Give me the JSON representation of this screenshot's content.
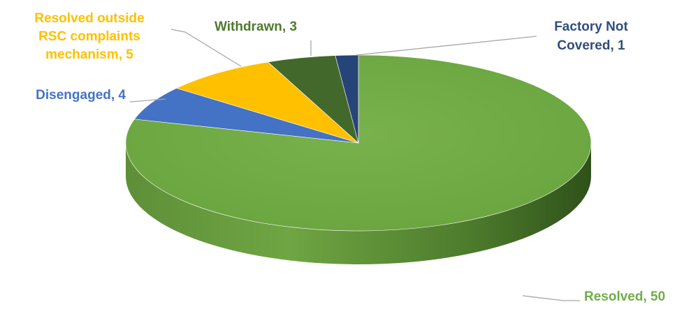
{
  "chart_data": {
    "type": "pie",
    "title": "",
    "slices": [
      {
        "label": "Resolved",
        "value": 50,
        "color": "#70AD47",
        "text": "Resolved, 50",
        "text_color": "#70AD47"
      },
      {
        "label": "Disengaged",
        "value": 4,
        "color": "#4472C4",
        "text": "Disengaged, 4",
        "text_color": "#4472C4"
      },
      {
        "label": "Resolved outside RSC complaints mechanism",
        "value": 5,
        "color": "#FFC000",
        "text_lines": [
          "Resolved outside",
          "RSC complaints",
          "mechanism, 5"
        ],
        "text_color": "#FFC000"
      },
      {
        "label": "Withdrawn",
        "value": 3,
        "color": "#43682B",
        "text": "Withdrawn, 3",
        "text_color": "#4E7A2E"
      },
      {
        "label": "Factory Not Covered",
        "value": 1,
        "color": "#264478",
        "text_lines": [
          "Factory Not",
          "Covered, 1"
        ],
        "text_color": "#2F4D7E"
      }
    ],
    "style": "3d-pie",
    "legend": "none",
    "data_labels": "outside-with-leader-lines"
  }
}
